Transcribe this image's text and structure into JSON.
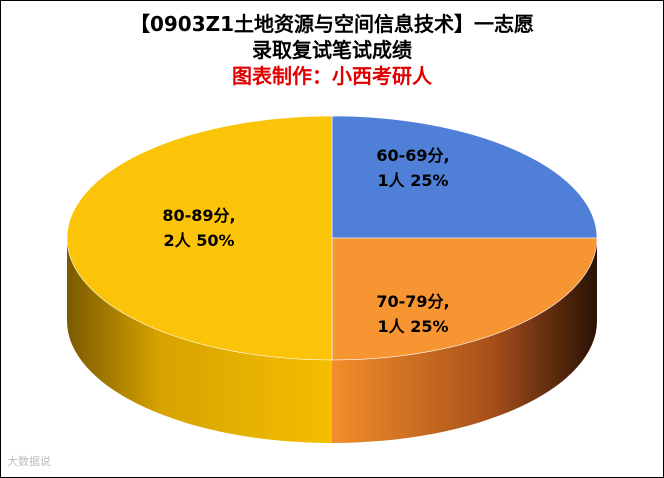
{
  "chart_data": {
    "type": "pie",
    "title": "【0903Z1土地资源与空间信息技术】一志愿",
    "subtitle": "录取复试笔试成绩",
    "credit": "图表制作：小西考研人",
    "slices": [
      {
        "label": "60-69分,",
        "detail": "1人 25%",
        "count": 1,
        "percent": 25,
        "color": "#4f7fd6"
      },
      {
        "label": "70-79分,",
        "detail": "1人 25%",
        "count": 1,
        "percent": 25,
        "color": "#f79533"
      },
      {
        "label": "80-89分,",
        "detail": "2人 50%",
        "count": 2,
        "percent": 50,
        "color": "#fcc409"
      }
    ],
    "legend": "none"
  },
  "watermark": "大数据说"
}
